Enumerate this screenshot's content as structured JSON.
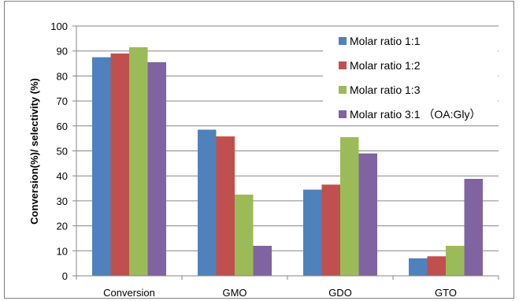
{
  "chart_data": {
    "type": "bar",
    "title": "",
    "xlabel": "",
    "ylabel": "Conversion(%)/ selectivity (%)",
    "ylim": [
      0,
      100
    ],
    "yticks": [
      0,
      10,
      20,
      30,
      40,
      50,
      60,
      70,
      80,
      90,
      100
    ],
    "grid": true,
    "legend_position": "top-right",
    "categories": [
      "Conversion",
      "GMO",
      "GDO",
      "GTO"
    ],
    "series": [
      {
        "name": "Molar ratio 1:1",
        "color": "#4f81bd",
        "values": [
          87.5,
          58.5,
          34.5,
          7
        ]
      },
      {
        "name": "Molar ratio 1:2",
        "color": "#c0504d",
        "values": [
          89,
          55.8,
          36.5,
          7.8
        ]
      },
      {
        "name": "Molar ratio 1:3",
        "color": "#9bbb59",
        "values": [
          91.5,
          32.5,
          55.5,
          12
        ]
      },
      {
        "name": "Molar ratio 3:1 （OA:Gly）",
        "color": "#8064a2",
        "values": [
          85.5,
          12,
          49,
          38.8
        ]
      }
    ]
  }
}
